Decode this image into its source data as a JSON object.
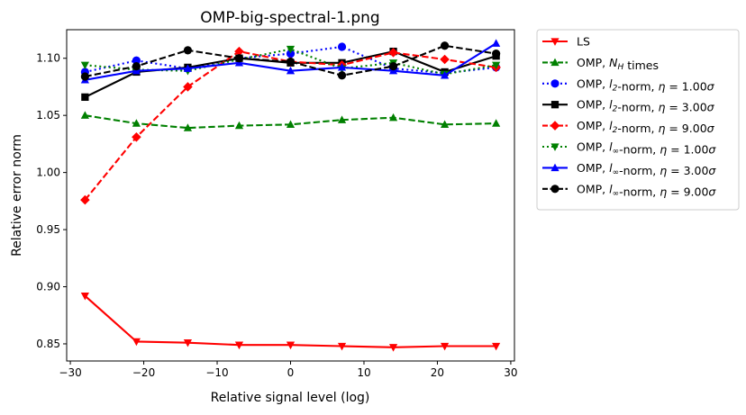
{
  "chart_data": {
    "type": "line",
    "title": "OMP-big-spectral-1.png",
    "xlabel": "Relative signal level (log)",
    "ylabel": "Relative error norm",
    "xlim": [
      -30.5,
      30.5
    ],
    "ylim": [
      0.835,
      1.125
    ],
    "xticks": [
      -30,
      -20,
      -10,
      0,
      10,
      20,
      30
    ],
    "yticks": [
      0.85,
      0.9,
      0.95,
      1.0,
      1.05,
      1.1
    ],
    "xtick_labels": [
      "−30",
      "−20",
      "−10",
      "0",
      "10",
      "20",
      "30"
    ],
    "ytick_labels": [
      "0.85",
      "0.90",
      "0.95",
      "1.00",
      "1.05",
      "1.10"
    ],
    "grid": false,
    "legend_placement": "outside-right-top",
    "x": [
      -28,
      -21,
      -14,
      -7,
      0,
      7,
      14,
      21,
      28
    ],
    "series": [
      {
        "name": "LS",
        "name_parts": [
          [
            "LS",
            ""
          ]
        ],
        "color": "#ff0000",
        "marker": "triangle-down",
        "linestyle": "solid",
        "values": [
          0.892,
          0.852,
          0.851,
          0.849,
          0.849,
          0.848,
          0.847,
          0.848,
          0.848
        ]
      },
      {
        "name": "OMP, N_H times",
        "name_parts": [
          [
            "OMP, ",
            "normal"
          ],
          [
            "N",
            "italic"
          ],
          [
            "H",
            "sub"
          ],
          [
            " times",
            "normal"
          ]
        ],
        "color": "#008000",
        "marker": "triangle-up",
        "linestyle": "dashed",
        "values": [
          1.05,
          1.043,
          1.039,
          1.041,
          1.042,
          1.046,
          1.048,
          1.042,
          1.043
        ]
      },
      {
        "name": "OMP, l_2-norm, η = 1.00σ",
        "name_parts": [
          [
            "OMP, ",
            "normal"
          ],
          [
            "l",
            "italic"
          ],
          [
            "2",
            "sub"
          ],
          [
            "-norm, ",
            "normal"
          ],
          [
            "η",
            "italic"
          ],
          [
            " = 1.00",
            "normal"
          ],
          [
            "σ",
            "italic"
          ]
        ],
        "color": "#0000ff",
        "marker": "circle",
        "linestyle": "dotted",
        "values": [
          1.088,
          1.098,
          1.091,
          1.1,
          1.104,
          1.11,
          1.091,
          1.087,
          1.092
        ]
      },
      {
        "name": "OMP, l_2-norm, η = 3.00σ",
        "name_parts": [
          [
            "OMP, ",
            "normal"
          ],
          [
            "l",
            "italic"
          ],
          [
            "2",
            "sub"
          ],
          [
            "-norm, ",
            "normal"
          ],
          [
            "η",
            "italic"
          ],
          [
            " = 3.00",
            "normal"
          ],
          [
            "σ",
            "italic"
          ]
        ],
        "color": "#000000",
        "marker": "square",
        "linestyle": "solid",
        "values": [
          1.066,
          1.088,
          1.092,
          1.1,
          1.096,
          1.096,
          1.106,
          1.088,
          1.102
        ]
      },
      {
        "name": "OMP, l_2-norm, η = 9.00σ",
        "name_parts": [
          [
            "OMP, ",
            "normal"
          ],
          [
            "l",
            "italic"
          ],
          [
            "2",
            "sub"
          ],
          [
            "-norm, ",
            "normal"
          ],
          [
            "η",
            "italic"
          ],
          [
            " = 9.00",
            "normal"
          ],
          [
            "σ",
            "italic"
          ]
        ],
        "color": "#ff0000",
        "marker": "diamond",
        "linestyle": "dashed",
        "values": [
          0.976,
          1.031,
          1.075,
          1.106,
          1.097,
          1.094,
          1.105,
          1.099,
          1.092
        ]
      },
      {
        "name": "OMP, l_∞-norm, η = 1.00σ",
        "name_parts": [
          [
            "OMP, ",
            "normal"
          ],
          [
            "l",
            "italic"
          ],
          [
            "∞",
            "sub"
          ],
          [
            "-norm, ",
            "normal"
          ],
          [
            "η",
            "italic"
          ],
          [
            " = 1.00",
            "normal"
          ],
          [
            "σ",
            "italic"
          ]
        ],
        "color": "#008000",
        "marker": "triangle-down",
        "linestyle": "dotted",
        "values": [
          1.094,
          1.09,
          1.089,
          1.099,
          1.108,
          1.091,
          1.096,
          1.086,
          1.094
        ]
      },
      {
        "name": "OMP, l_∞-norm, η = 3.00σ",
        "name_parts": [
          [
            "OMP, ",
            "normal"
          ],
          [
            "l",
            "italic"
          ],
          [
            "∞",
            "sub"
          ],
          [
            "-norm, ",
            "normal"
          ],
          [
            "η",
            "italic"
          ],
          [
            " = 3.00",
            "normal"
          ],
          [
            "σ",
            "italic"
          ]
        ],
        "color": "#0000ff",
        "marker": "triangle-up",
        "linestyle": "solid",
        "values": [
          1.081,
          1.089,
          1.091,
          1.096,
          1.089,
          1.092,
          1.089,
          1.085,
          1.113
        ]
      },
      {
        "name": "OMP, l_∞-norm, η = 9.00σ",
        "name_parts": [
          [
            "OMP, ",
            "normal"
          ],
          [
            "l",
            "italic"
          ],
          [
            "∞",
            "sub"
          ],
          [
            "-norm, ",
            "normal"
          ],
          [
            "η",
            "italic"
          ],
          [
            " = 9.00",
            "normal"
          ],
          [
            "σ",
            "italic"
          ]
        ],
        "color": "#000000",
        "marker": "circle",
        "linestyle": "dashed",
        "values": [
          1.084,
          1.093,
          1.107,
          1.1,
          1.097,
          1.085,
          1.093,
          1.111,
          1.104
        ]
      }
    ]
  }
}
